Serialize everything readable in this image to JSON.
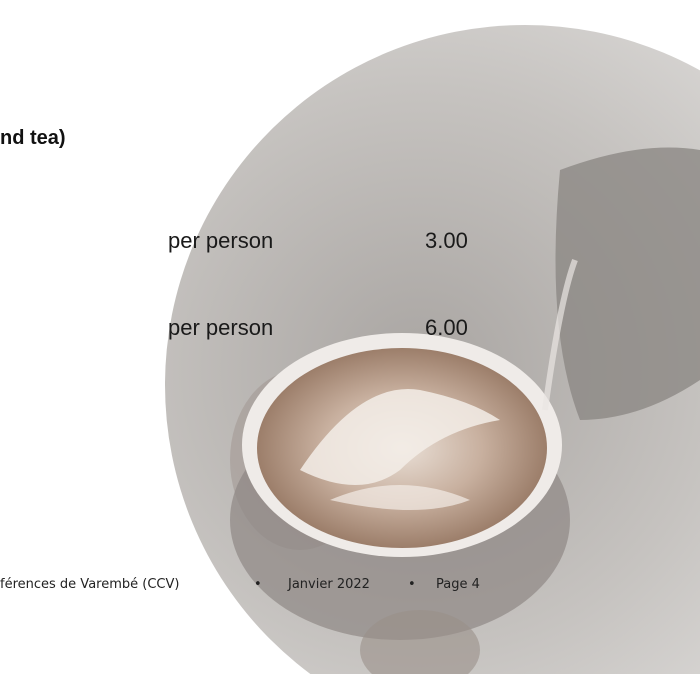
{
  "heading": "nd tea)",
  "rows": [
    {
      "unit": "per person",
      "price": "3.00"
    },
    {
      "unit": "per person",
      "price": "6.00"
    }
  ],
  "footer": {
    "items": [
      "férences de Varembé (CCV)",
      "Janvier 2022",
      "Page 4"
    ],
    "separator": "•"
  }
}
